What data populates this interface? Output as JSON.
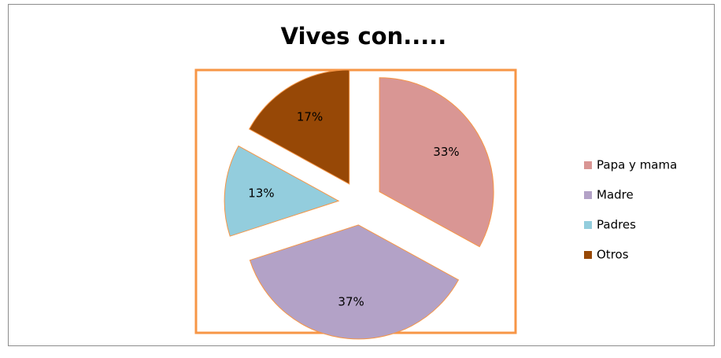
{
  "chart_data": {
    "type": "pie",
    "title": "Vives con.....",
    "categories": [
      "Papa y mama",
      "Madre",
      "Padres",
      "Otros"
    ],
    "values": [
      33,
      37,
      13,
      17
    ],
    "value_labels": [
      "33%",
      "37%",
      "13%",
      "17%"
    ],
    "colors": [
      "#d99694",
      "#b3a2c7",
      "#93cddd",
      "#974806"
    ],
    "legend": "right"
  }
}
